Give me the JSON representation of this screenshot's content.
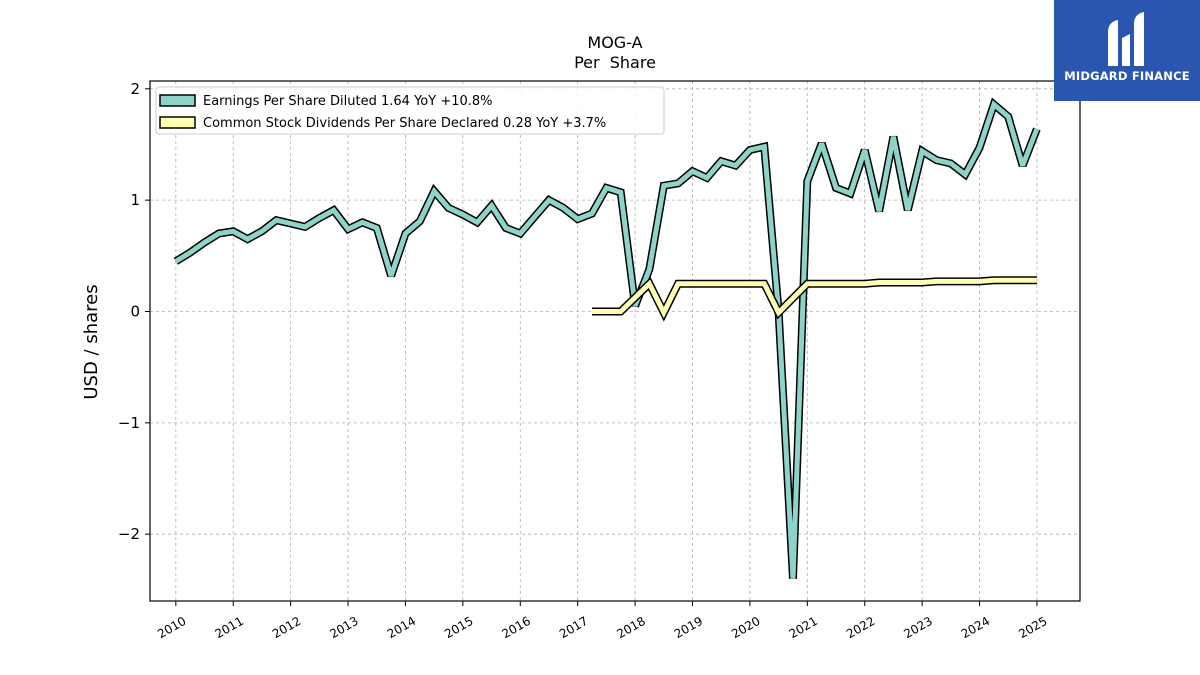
{
  "chart_data": {
    "type": "line",
    "title": "MOG-A",
    "subtitle": "Per  Share",
    "ylabel": "USD / shares",
    "xlim": [
      2009.55,
      2025.75
    ],
    "ylim": [
      -2.6,
      2.07
    ],
    "yticks": [
      2,
      1,
      0,
      -1,
      -2
    ],
    "ytick_labels": [
      "2",
      "1",
      "0",
      "−1",
      "−2"
    ],
    "xticks": [
      2010,
      2011,
      2012,
      2013,
      2014,
      2015,
      2016,
      2017,
      2018,
      2019,
      2020,
      2021,
      2022,
      2023,
      2024,
      2025
    ],
    "grid": true,
    "legend_position": "top-left",
    "series": [
      {
        "name": "Earnings Per Share Diluted  1.64 YoY +10.8%",
        "color": "#8dd3c7",
        "points": [
          [
            2010.0,
            0.45
          ],
          [
            2010.25,
            0.53
          ],
          [
            2010.5,
            0.62
          ],
          [
            2010.75,
            0.7
          ],
          [
            2011.0,
            0.72
          ],
          [
            2011.25,
            0.65
          ],
          [
            2011.5,
            0.72
          ],
          [
            2011.75,
            0.82
          ],
          [
            2012.0,
            0.79
          ],
          [
            2012.25,
            0.76
          ],
          [
            2012.5,
            0.84
          ],
          [
            2012.75,
            0.91
          ],
          [
            2013.0,
            0.74
          ],
          [
            2013.25,
            0.8
          ],
          [
            2013.5,
            0.75
          ],
          [
            2013.75,
            0.32
          ],
          [
            2014.0,
            0.7
          ],
          [
            2014.25,
            0.81
          ],
          [
            2014.5,
            1.08
          ],
          [
            2014.75,
            0.93
          ],
          [
            2015.0,
            0.87
          ],
          [
            2015.25,
            0.8
          ],
          [
            2015.5,
            0.95
          ],
          [
            2015.75,
            0.75
          ],
          [
            2016.0,
            0.7
          ],
          [
            2016.25,
            0.85
          ],
          [
            2016.5,
            1.0
          ],
          [
            2016.75,
            0.93
          ],
          [
            2017.0,
            0.83
          ],
          [
            2017.25,
            0.88
          ],
          [
            2017.5,
            1.11
          ],
          [
            2017.75,
            1.07
          ],
          [
            2018.0,
            0.05
          ],
          [
            2018.25,
            0.38
          ],
          [
            2018.5,
            1.13
          ],
          [
            2018.75,
            1.15
          ],
          [
            2019.0,
            1.26
          ],
          [
            2019.25,
            1.2
          ],
          [
            2019.5,
            1.35
          ],
          [
            2019.75,
            1.31
          ],
          [
            2020.0,
            1.45
          ],
          [
            2020.25,
            1.48
          ],
          [
            2020.5,
            0.0
          ],
          [
            2020.75,
            -2.4
          ],
          [
            2021.0,
            1.17
          ],
          [
            2021.25,
            1.51
          ],
          [
            2021.5,
            1.11
          ],
          [
            2021.75,
            1.06
          ],
          [
            2022.0,
            1.45
          ],
          [
            2022.25,
            0.9
          ],
          [
            2022.5,
            1.57
          ],
          [
            2022.75,
            0.91
          ],
          [
            2023.0,
            1.44
          ],
          [
            2023.25,
            1.36
          ],
          [
            2023.5,
            1.33
          ],
          [
            2023.75,
            1.23
          ],
          [
            2024.0,
            1.47
          ],
          [
            2024.25,
            1.86
          ],
          [
            2024.5,
            1.75
          ],
          [
            2024.75,
            1.31
          ],
          [
            2025.0,
            1.64
          ]
        ]
      },
      {
        "name": "Common Stock Dividends Per Share Declared  0.28 YoY +3.7%",
        "color": "#ffffb3",
        "points": [
          [
            2017.25,
            0.0
          ],
          [
            2017.75,
            0.0
          ],
          [
            2018.25,
            0.25
          ],
          [
            2018.5,
            -0.01
          ],
          [
            2018.75,
            0.25
          ],
          [
            2019.0,
            0.25
          ],
          [
            2019.5,
            0.25
          ],
          [
            2020.0,
            0.25
          ],
          [
            2020.25,
            0.25
          ],
          [
            2020.5,
            -0.01
          ],
          [
            2021.0,
            0.25
          ],
          [
            2021.5,
            0.25
          ],
          [
            2022.0,
            0.25
          ],
          [
            2022.25,
            0.26
          ],
          [
            2022.75,
            0.26
          ],
          [
            2023.0,
            0.26
          ],
          [
            2023.25,
            0.27
          ],
          [
            2023.75,
            0.27
          ],
          [
            2024.0,
            0.27
          ],
          [
            2024.25,
            0.28
          ],
          [
            2025.0,
            0.28
          ]
        ]
      }
    ]
  },
  "logo": {
    "text": "MIDGARD FINANCE",
    "background": "#2b56b0"
  }
}
